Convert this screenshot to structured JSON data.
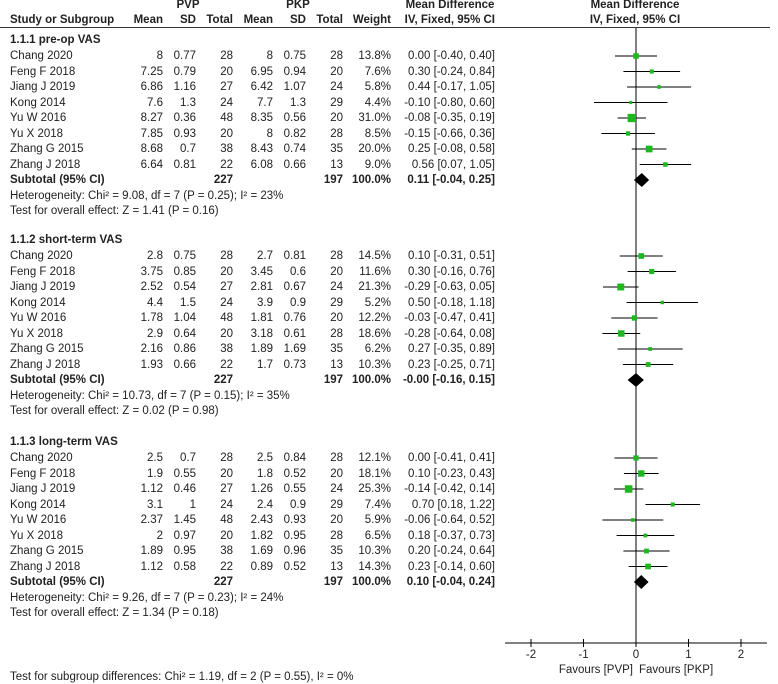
{
  "header": {
    "group1": "PVP",
    "group2": "PKP",
    "col_study": "Study or Subgroup",
    "col_mean": "Mean",
    "col_sd": "SD",
    "col_total": "Total",
    "col_weight": "Weight",
    "md_title": "Mean Difference",
    "md_method": "IV, Fixed, 95% CI",
    "plot_title": "Mean Difference",
    "plot_method": "IV, Fixed, 95% CI"
  },
  "chart_data": {
    "type": "forest",
    "xlim": [
      -2.5,
      2.5
    ],
    "xticks": [
      "-2",
      "-1",
      "0",
      "1",
      "2"
    ],
    "xtick_values": [
      -2,
      -1,
      0,
      1,
      2
    ],
    "favours_left": "Favours [PVP]",
    "favours_right": "Favours [PKP]",
    "colors": {
      "square": "#1db81d",
      "line": "#000000",
      "diamond": "#000000"
    },
    "subgroups": [
      {
        "title": "1.1.1 pre-op VAS",
        "studies": [
          {
            "name": "Chang 2020",
            "m1": "8",
            "sd1": "0.77",
            "n1": "28",
            "m2": "8",
            "sd2": "0.75",
            "n2": "28",
            "weight": "13.8%",
            "w": 13.8,
            "md": 0.0,
            "lo": -0.4,
            "hi": 0.4,
            "ci": "0.00 [-0.40, 0.40]"
          },
          {
            "name": "Feng F 2018",
            "m1": "7.25",
            "sd1": "0.79",
            "n1": "20",
            "m2": "6.95",
            "sd2": "0.94",
            "n2": "20",
            "weight": "7.6%",
            "w": 7.6,
            "md": 0.3,
            "lo": -0.24,
            "hi": 0.84,
            "ci": "0.30 [-0.24, 0.84]"
          },
          {
            "name": "Jiang J 2019",
            "m1": "6.86",
            "sd1": "1.16",
            "n1": "27",
            "m2": "6.42",
            "sd2": "1.07",
            "n2": "24",
            "weight": "5.8%",
            "w": 5.8,
            "md": 0.44,
            "lo": -0.17,
            "hi": 1.05,
            "ci": "0.44 [-0.17, 1.05]"
          },
          {
            "name": "Kong 2014",
            "m1": "7.6",
            "sd1": "1.3",
            "n1": "24",
            "m2": "7.7",
            "sd2": "1.3",
            "n2": "29",
            "weight": "4.4%",
            "w": 4.4,
            "md": -0.1,
            "lo": -0.8,
            "hi": 0.6,
            "ci": "-0.10 [-0.80, 0.60]"
          },
          {
            "name": "Yu W 2016",
            "m1": "8.27",
            "sd1": "0.36",
            "n1": "48",
            "m2": "8.35",
            "sd2": "0.56",
            "n2": "20",
            "weight": "31.0%",
            "w": 31.0,
            "md": -0.08,
            "lo": -0.35,
            "hi": 0.19,
            "ci": "-0.08 [-0.35, 0.19]"
          },
          {
            "name": "Yu X 2018",
            "m1": "7.85",
            "sd1": "0.93",
            "n1": "20",
            "m2": "8",
            "sd2": "0.82",
            "n2": "28",
            "weight": "8.5%",
            "w": 8.5,
            "md": -0.15,
            "lo": -0.66,
            "hi": 0.36,
            "ci": "-0.15 [-0.66, 0.36]"
          },
          {
            "name": "Zhang G 2015",
            "m1": "8.68",
            "sd1": "0.7",
            "n1": "38",
            "m2": "8.43",
            "sd2": "0.74",
            "n2": "35",
            "weight": "20.0%",
            "w": 20.0,
            "md": 0.25,
            "lo": -0.08,
            "hi": 0.58,
            "ci": "0.25 [-0.08, 0.58]"
          },
          {
            "name": "Zhang J 2018",
            "m1": "6.64",
            "sd1": "0.81",
            "n1": "22",
            "m2": "6.08",
            "sd2": "0.66",
            "n2": "13",
            "weight": "9.0%",
            "w": 9.0,
            "md": 0.56,
            "lo": 0.07,
            "hi": 1.05,
            "ci": "0.56 [0.07, 1.05]"
          }
        ],
        "subtotal": {
          "label": "Subtotal (95% CI)",
          "n1": "227",
          "n2": "197",
          "weight": "100.0%",
          "md": 0.11,
          "lo": -0.04,
          "hi": 0.25,
          "ci": "0.11 [-0.04, 0.25]"
        },
        "heterogeneity": "Heterogeneity: Chi² = 9.08, df = 7 (P = 0.25); I² = 23%",
        "overall": "Test for overall effect: Z = 1.41 (P = 0.16)"
      },
      {
        "title": "1.1.2 short-term VAS",
        "studies": [
          {
            "name": "Chang 2020",
            "m1": "2.8",
            "sd1": "0.75",
            "n1": "28",
            "m2": "2.7",
            "sd2": "0.81",
            "n2": "28",
            "weight": "14.5%",
            "w": 14.5,
            "md": 0.1,
            "lo": -0.31,
            "hi": 0.51,
            "ci": "0.10 [-0.31, 0.51]"
          },
          {
            "name": "Feng F 2018",
            "m1": "3.75",
            "sd1": "0.85",
            "n1": "20",
            "m2": "3.45",
            "sd2": "0.6",
            "n2": "20",
            "weight": "11.6%",
            "w": 11.6,
            "md": 0.3,
            "lo": -0.16,
            "hi": 0.76,
            "ci": "0.30 [-0.16, 0.76]"
          },
          {
            "name": "Jiang J 2019",
            "m1": "2.52",
            "sd1": "0.54",
            "n1": "27",
            "m2": "2.81",
            "sd2": "0.67",
            "n2": "24",
            "weight": "21.3%",
            "w": 21.3,
            "md": -0.29,
            "lo": -0.63,
            "hi": 0.05,
            "ci": "-0.29 [-0.63, 0.05]"
          },
          {
            "name": "Kong 2014",
            "m1": "4.4",
            "sd1": "1.5",
            "n1": "24",
            "m2": "3.9",
            "sd2": "0.9",
            "n2": "29",
            "weight": "5.2%",
            "w": 5.2,
            "md": 0.5,
            "lo": -0.18,
            "hi": 1.18,
            "ci": "0.50 [-0.18, 1.18]"
          },
          {
            "name": "Yu W 2016",
            "m1": "1.78",
            "sd1": "1.04",
            "n1": "48",
            "m2": "1.81",
            "sd2": "0.76",
            "n2": "20",
            "weight": "12.2%",
            "w": 12.2,
            "md": -0.03,
            "lo": -0.47,
            "hi": 0.41,
            "ci": "-0.03 [-0.47, 0.41]"
          },
          {
            "name": "Yu X 2018",
            "m1": "2.9",
            "sd1": "0.64",
            "n1": "20",
            "m2": "3.18",
            "sd2": "0.61",
            "n2": "28",
            "weight": "18.6%",
            "w": 18.6,
            "md": -0.28,
            "lo": -0.64,
            "hi": 0.08,
            "ci": "-0.28 [-0.64, 0.08]"
          },
          {
            "name": "Zhang G 2015",
            "m1": "2.16",
            "sd1": "0.86",
            "n1": "38",
            "m2": "1.89",
            "sd2": "1.69",
            "n2": "35",
            "weight": "6.2%",
            "w": 6.2,
            "md": 0.27,
            "lo": -0.35,
            "hi": 0.89,
            "ci": "0.27 [-0.35, 0.89]"
          },
          {
            "name": "Zhang J 2018",
            "m1": "1.93",
            "sd1": "0.66",
            "n1": "22",
            "m2": "1.7",
            "sd2": "0.73",
            "n2": "13",
            "weight": "10.3%",
            "w": 10.3,
            "md": 0.23,
            "lo": -0.25,
            "hi": 0.71,
            "ci": "0.23 [-0.25, 0.71]"
          }
        ],
        "subtotal": {
          "label": "Subtotal (95% CI)",
          "n1": "227",
          "n2": "197",
          "weight": "100.0%",
          "md": -0.0,
          "lo": -0.16,
          "hi": 0.15,
          "ci": "-0.00 [-0.16, 0.15]"
        },
        "heterogeneity": "Heterogeneity: Chi² = 10.73, df = 7 (P = 0.15); I² = 35%",
        "overall": "Test for overall effect: Z = 0.02 (P = 0.98)"
      },
      {
        "title": "1.1.3 long-term VAS",
        "studies": [
          {
            "name": "Chang 2020",
            "m1": "2.5",
            "sd1": "0.7",
            "n1": "28",
            "m2": "2.5",
            "sd2": "0.84",
            "n2": "28",
            "weight": "12.1%",
            "w": 12.1,
            "md": 0.0,
            "lo": -0.41,
            "hi": 0.41,
            "ci": "0.00 [-0.41, 0.41]"
          },
          {
            "name": "Feng F 2018",
            "m1": "1.9",
            "sd1": "0.55",
            "n1": "20",
            "m2": "1.8",
            "sd2": "0.52",
            "n2": "20",
            "weight": "18.1%",
            "w": 18.1,
            "md": 0.1,
            "lo": -0.23,
            "hi": 0.43,
            "ci": "0.10 [-0.23, 0.43]"
          },
          {
            "name": "Jiang J 2019",
            "m1": "1.12",
            "sd1": "0.46",
            "n1": "27",
            "m2": "1.26",
            "sd2": "0.55",
            "n2": "24",
            "weight": "25.3%",
            "w": 25.3,
            "md": -0.14,
            "lo": -0.42,
            "hi": 0.14,
            "ci": "-0.14 [-0.42, 0.14]"
          },
          {
            "name": "Kong 2014",
            "m1": "3.1",
            "sd1": "1",
            "n1": "24",
            "m2": "2.4",
            "sd2": "0.9",
            "n2": "29",
            "weight": "7.4%",
            "w": 7.4,
            "md": 0.7,
            "lo": 0.18,
            "hi": 1.22,
            "ci": "0.70 [0.18, 1.22]"
          },
          {
            "name": "Yu W 2016",
            "m1": "2.37",
            "sd1": "1.45",
            "n1": "48",
            "m2": "2.43",
            "sd2": "0.93",
            "n2": "20",
            "weight": "5.9%",
            "w": 5.9,
            "md": -0.06,
            "lo": -0.64,
            "hi": 0.52,
            "ci": "-0.06 [-0.64, 0.52]"
          },
          {
            "name": "Yu X 2018",
            "m1": "2",
            "sd1": "0.97",
            "n1": "20",
            "m2": "1.82",
            "sd2": "0.95",
            "n2": "28",
            "weight": "6.5%",
            "w": 6.5,
            "md": 0.18,
            "lo": -0.37,
            "hi": 0.73,
            "ci": "0.18 [-0.37, 0.73]"
          },
          {
            "name": "Zhang G 2015",
            "m1": "1.89",
            "sd1": "0.95",
            "n1": "38",
            "m2": "1.69",
            "sd2": "0.96",
            "n2": "35",
            "weight": "10.3%",
            "w": 10.3,
            "md": 0.2,
            "lo": -0.24,
            "hi": 0.64,
            "ci": "0.20 [-0.24, 0.64]"
          },
          {
            "name": "Zhang J 2018",
            "m1": "1.12",
            "sd1": "0.58",
            "n1": "22",
            "m2": "0.89",
            "sd2": "0.52",
            "n2": "13",
            "weight": "14.3%",
            "w": 14.3,
            "md": 0.23,
            "lo": -0.14,
            "hi": 0.6,
            "ci": "0.23 [-0.14, 0.60]"
          }
        ],
        "subtotal": {
          "label": "Subtotal (95% CI)",
          "n1": "227",
          "n2": "197",
          "weight": "100.0%",
          "md": 0.1,
          "lo": -0.04,
          "hi": 0.24,
          "ci": "0.10 [-0.04, 0.24]"
        },
        "heterogeneity": "Heterogeneity: Chi² = 9.26, df = 7 (P = 0.23); I² = 24%",
        "overall": "Test for overall effect: Z = 1.34 (P = 0.18)"
      }
    ],
    "subgroup_differences": "Test for subgroup differences: Chi² = 1.19, df = 2 (P = 0.55), I² = 0%"
  }
}
